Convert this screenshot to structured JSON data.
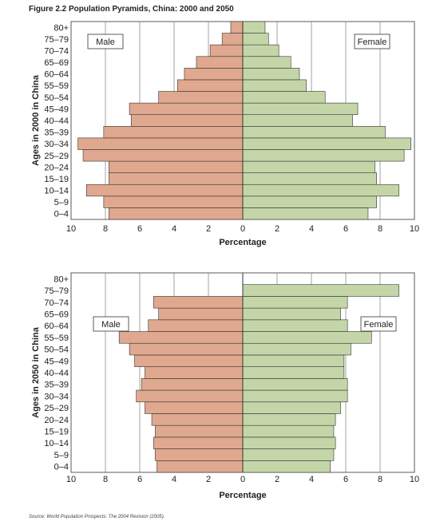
{
  "figure_title": "Figure 2.2 Population Pyramids, China: 2000 and 2050",
  "source": "Source: World Population Prospects: The 2004 Revision (2005).",
  "colors": {
    "male": "#e0a88f",
    "female": "#c4d6a8",
    "stroke": "#333333",
    "grid": "#666666"
  },
  "chart_data": [
    {
      "type": "bar",
      "orientation": "horizontal-population-pyramid",
      "ylabel": "Ages in 2000 in China",
      "xlabel": "Percentage",
      "xlim": [
        -10,
        10
      ],
      "xtick_labels": [
        "10",
        "8",
        "6",
        "4",
        "2",
        "0",
        "2",
        "4",
        "6",
        "8",
        "10"
      ],
      "legend": {
        "male_label": "Male",
        "female_label": "Female"
      },
      "categories": [
        "0–4",
        "5–9",
        "10–14",
        "15–19",
        "20–24",
        "25–29",
        "30–34",
        "35–39",
        "40–44",
        "45–49",
        "50–54",
        "55–59",
        "60–64",
        "65–69",
        "70–74",
        "75–79",
        "80+"
      ],
      "series": [
        {
          "name": "Male",
          "values": [
            7.8,
            8.1,
            9.1,
            7.8,
            7.8,
            9.3,
            9.6,
            8.1,
            6.5,
            6.6,
            4.9,
            3.8,
            3.4,
            2.7,
            1.9,
            1.2,
            0.7
          ]
        },
        {
          "name": "Female",
          "values": [
            7.3,
            7.8,
            9.1,
            7.8,
            7.7,
            9.4,
            9.8,
            8.3,
            6.4,
            6.7,
            4.8,
            3.7,
            3.3,
            2.8,
            2.1,
            1.5,
            1.3
          ]
        }
      ]
    },
    {
      "type": "bar",
      "orientation": "horizontal-population-pyramid",
      "ylabel": "Ages in 2050 in China",
      "xlabel": "Percentage",
      "xlim": [
        -10,
        10
      ],
      "xtick_labels": [
        "10",
        "8",
        "6",
        "4",
        "2",
        "0",
        "2",
        "4",
        "6",
        "8",
        "10"
      ],
      "legend": {
        "male_label": "Male",
        "female_label": "Female"
      },
      "categories": [
        "0–4",
        "5–9",
        "10–14",
        "15–19",
        "20–24",
        "25–29",
        "30–34",
        "35–39",
        "40–44",
        "45–49",
        "50–54",
        "55–59",
        "60–64",
        "65–69",
        "70–74",
        "75–79",
        "80+"
      ],
      "series": [
        {
          "name": "Male",
          "values": [
            5.0,
            5.1,
            5.2,
            5.1,
            5.3,
            5.7,
            6.2,
            5.9,
            5.7,
            6.3,
            6.6,
            7.2,
            5.5,
            4.9,
            5.2,
            0,
            0
          ]
        },
        {
          "name": "Female",
          "values": [
            5.1,
            5.3,
            5.4,
            5.3,
            5.4,
            5.7,
            6.1,
            6.1,
            5.9,
            5.9,
            6.3,
            7.5,
            6.1,
            5.7,
            6.1,
            9.1,
            0
          ]
        }
      ]
    }
  ]
}
